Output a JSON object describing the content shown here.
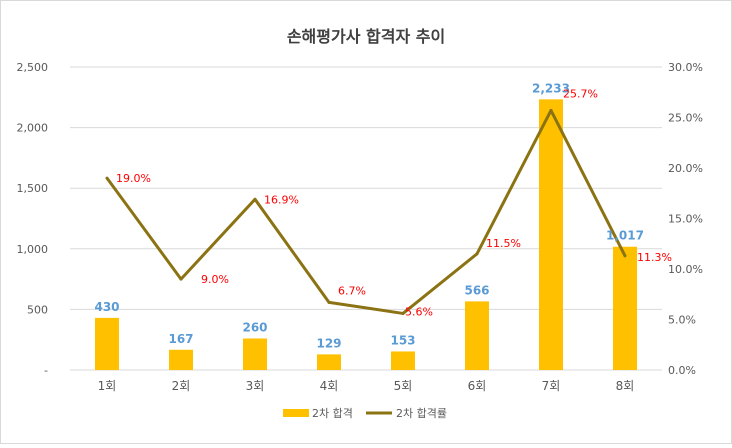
{
  "chart_data": {
    "type": "bar",
    "title": "손해평가사 합격자 추이",
    "categories": [
      "1회",
      "2회",
      "3회",
      "4회",
      "5회",
      "6회",
      "7회",
      "8회"
    ],
    "series": [
      {
        "name": "2차 합격",
        "type": "bar",
        "axis": "left",
        "values": [
          430,
          167,
          260,
          129,
          153,
          566,
          2233,
          1017
        ],
        "labels": [
          "430",
          "167",
          "260",
          "129",
          "153",
          "566",
          "2,233",
          "1,017"
        ]
      },
      {
        "name": "2차 합격률",
        "type": "line",
        "axis": "right",
        "values": [
          19.0,
          9.0,
          16.9,
          6.7,
          5.6,
          11.5,
          25.7,
          11.3
        ],
        "labels": [
          "19.0%",
          "9.0%",
          "16.9%",
          "6.7%",
          "5.6%",
          "11.5%",
          "25.7%",
          "11.3%"
        ]
      }
    ],
    "left_axis": {
      "ylim": [
        0,
        2500
      ],
      "ticks": [
        "-",
        "500",
        "1,000",
        "1,500",
        "2,000",
        "2,500"
      ]
    },
    "right_axis": {
      "ylim": [
        0,
        30
      ],
      "ticks": [
        "0.0%",
        "5.0%",
        "10.0%",
        "15.0%",
        "20.0%",
        "25.0%",
        "30.0%"
      ]
    },
    "grid": true,
    "legend_position": "bottom",
    "colors": {
      "bar": "#FFC000",
      "line": "#8B7313",
      "bar_label": "#5B9BD5",
      "line_label": "#FF0000",
      "axis_text": "#595959",
      "grid": "#D9D9D9",
      "title": "#404040"
    }
  }
}
